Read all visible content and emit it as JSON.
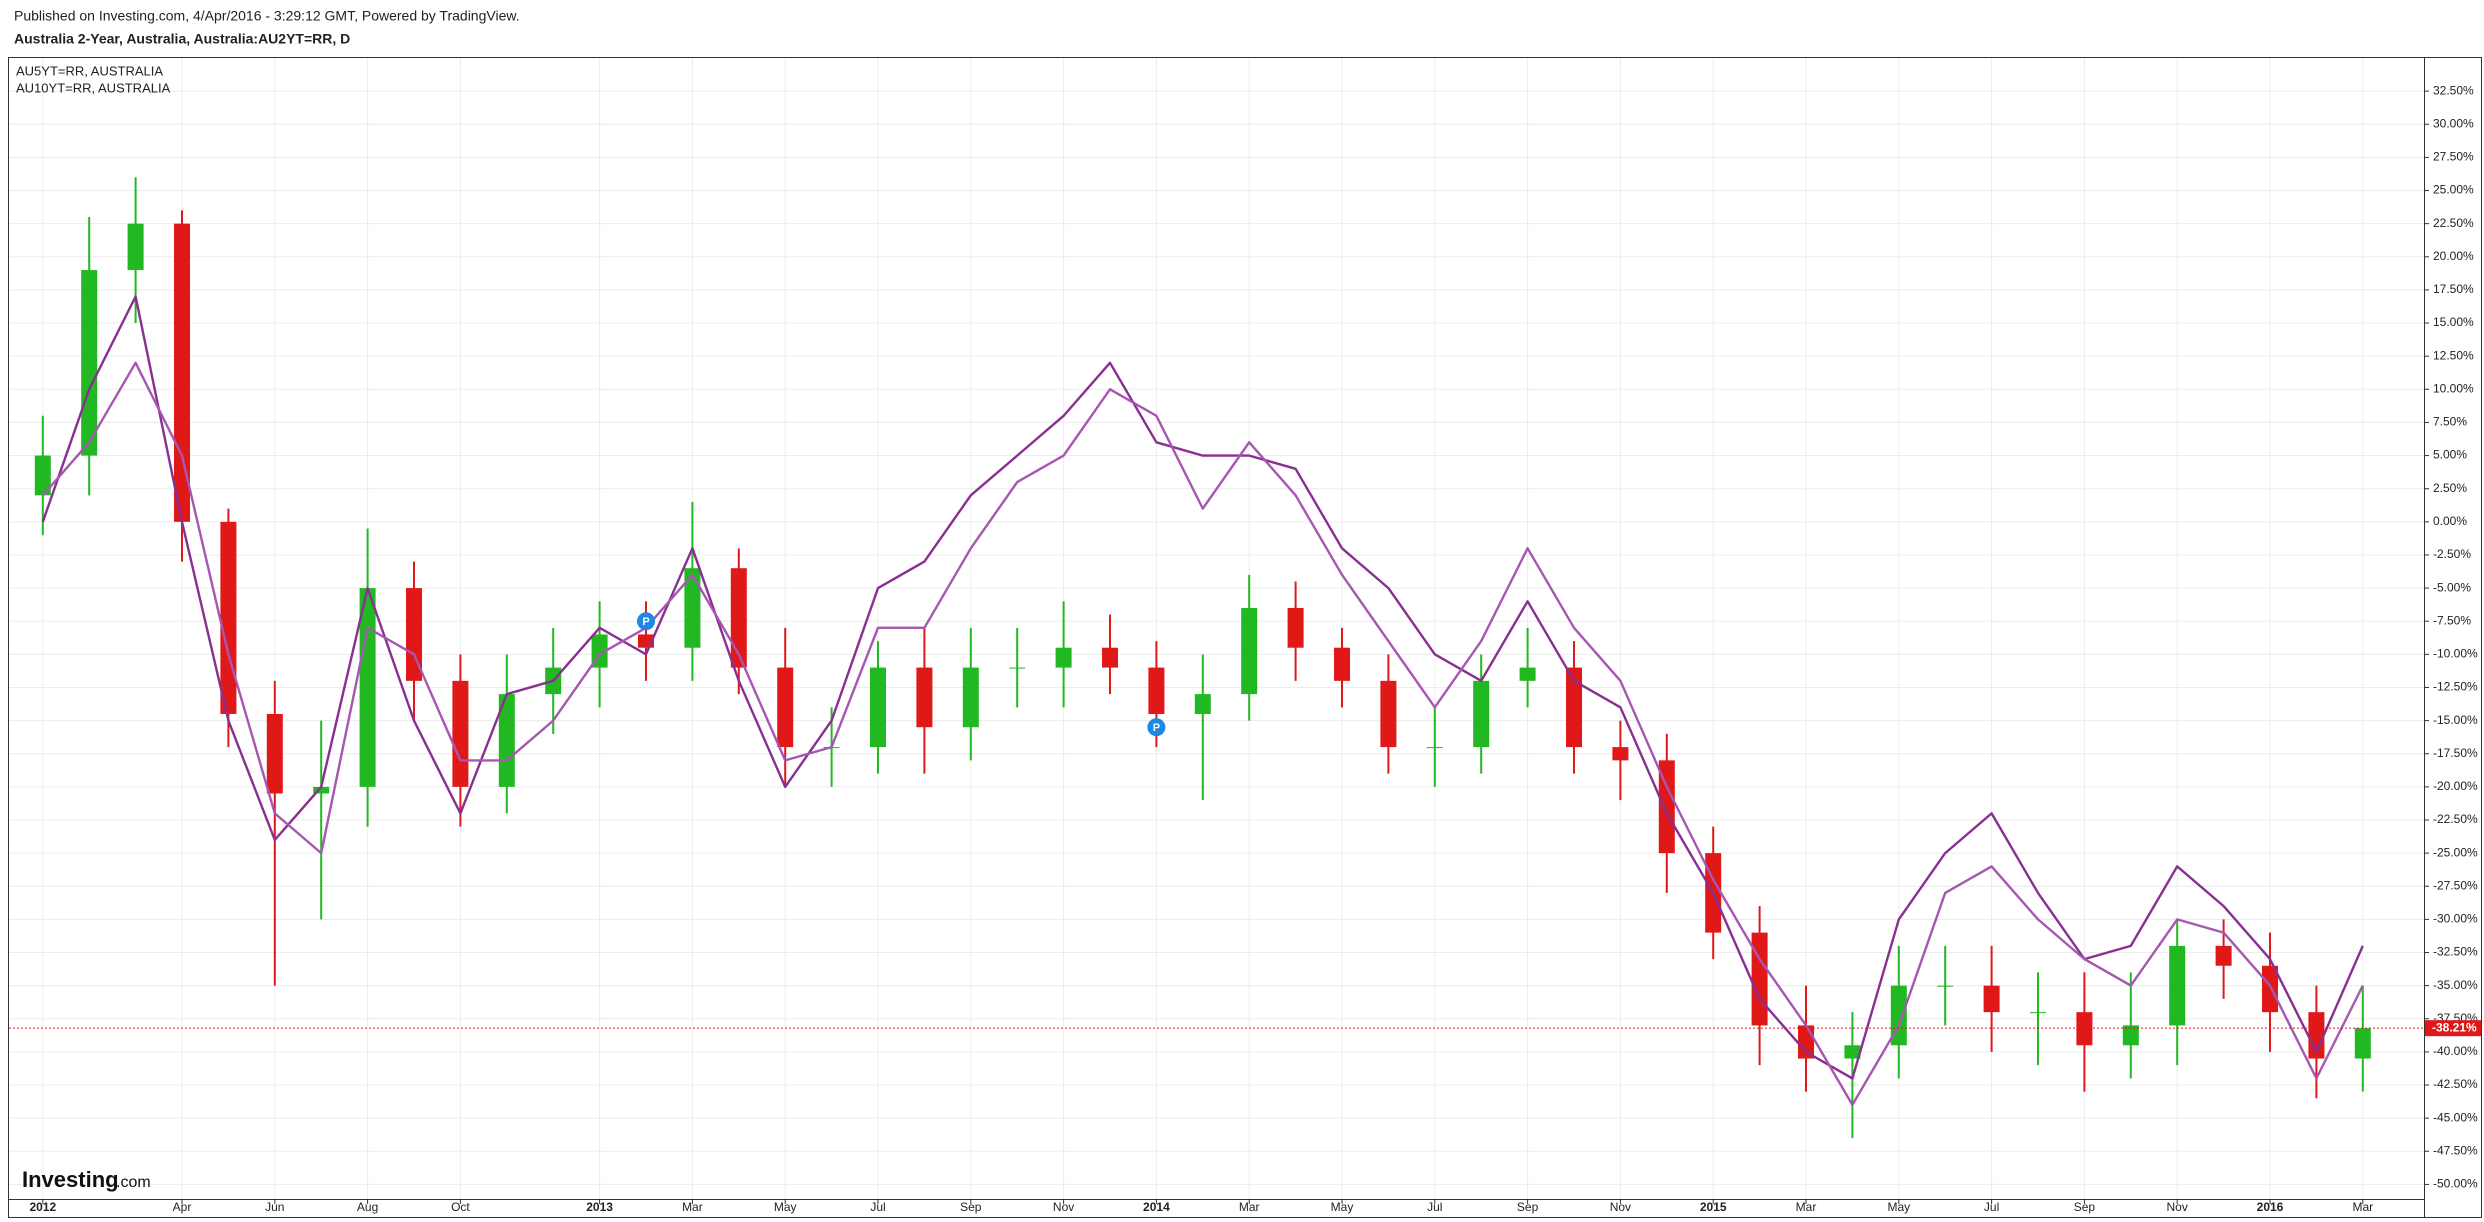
{
  "header": {
    "published": "Published on Investing.com, 4/Apr/2016 - 3:29:12 GMT, Powered by TradingView."
  },
  "watermark": {
    "name": "Investing",
    "suffix": ".com"
  },
  "chart_data": {
    "type": "candlestick",
    "title": "Australia 2-Year, Australia, Australia:AU2YT=RR, D",
    "x": [
      "2012-01",
      "2012-02",
      "2012-03",
      "2012-04",
      "2012-05",
      "2012-06",
      "2012-07",
      "2012-08",
      "2012-09",
      "2012-10",
      "2012-11",
      "2012-12",
      "2013-01",
      "2013-02",
      "2013-03",
      "2013-04",
      "2013-05",
      "2013-06",
      "2013-07",
      "2013-08",
      "2013-09",
      "2013-10",
      "2013-11",
      "2013-12",
      "2014-01",
      "2014-02",
      "2014-03",
      "2014-04",
      "2014-05",
      "2014-06",
      "2014-07",
      "2014-08",
      "2014-09",
      "2014-10",
      "2014-11",
      "2014-12",
      "2015-01",
      "2015-02",
      "2015-03",
      "2015-04",
      "2015-05",
      "2015-06",
      "2015-07",
      "2015-08",
      "2015-09",
      "2015-10",
      "2015-11",
      "2015-12",
      "2016-01",
      "2016-02",
      "2016-03"
    ],
    "candles": {
      "up_color": "#22b822",
      "down_color": "#e01818",
      "open": [
        2,
        5,
        19,
        22.5,
        0,
        -14.5,
        -20.5,
        -20,
        -5,
        -12,
        -20,
        -13,
        -11,
        -8.5,
        -9.5,
        -3.5,
        -11,
        -17,
        -17,
        -11,
        -15.5,
        -11,
        -11,
        -9.5,
        -11,
        -14.5,
        -13,
        -6.5,
        -9.5,
        -12,
        -17,
        -17,
        -12,
        -11,
        -17,
        -18,
        -25,
        -31,
        -38,
        -40.5,
        -39.5,
        -35,
        -35,
        -37,
        -37,
        -39.5,
        -38,
        -32,
        -33.5,
        -37,
        -40.5
      ],
      "high": [
        8,
        23,
        26,
        23.5,
        1,
        -12,
        -15,
        -0.5,
        -3,
        -10,
        -10,
        -8,
        -6,
        -6,
        1.5,
        -2,
        -8,
        -14,
        -9,
        -8,
        -8,
        -8,
        -6,
        -7,
        -9,
        -10,
        -4,
        -4.5,
        -8,
        -10,
        -14,
        -10,
        -8,
        -9,
        -15,
        -16,
        -23,
        -29,
        -35,
        -37,
        -32,
        -32,
        -32,
        -34,
        -34,
        -34,
        -30,
        -30,
        -31,
        -35,
        -35
      ],
      "low": [
        -1,
        2,
        15,
        -3,
        -17,
        -35,
        -30,
        -23,
        -15,
        -23,
        -22,
        -16,
        -14,
        -12,
        -12,
        -13,
        -20,
        -20,
        -19,
        -19,
        -18,
        -14,
        -14,
        -13,
        -17,
        -21,
        -15,
        -12,
        -14,
        -19,
        -20,
        -19,
        -14,
        -19,
        -21,
        -28,
        -33,
        -41,
        -43,
        -46.5,
        -42,
        -38,
        -40,
        -41,
        -43,
        -42,
        -41,
        -36,
        -40,
        -43.5,
        -43
      ],
      "close": [
        5,
        19,
        22.5,
        0,
        -14.5,
        -20.5,
        -20,
        -5,
        -12,
        -20,
        -13,
        -11,
        -8.5,
        -9.5,
        -3.5,
        -11,
        -17,
        -17,
        -11,
        -15.5,
        -11,
        -11,
        -9.5,
        -11,
        -14.5,
        -13,
        -6.5,
        -9.5,
        -12,
        -17,
        -17,
        -12,
        -11,
        -17,
        -18,
        -25,
        -31,
        -38,
        -40.5,
        -39.5,
        -35,
        -35,
        -37,
        -37,
        -39.5,
        -38,
        -32,
        -33.5,
        -37,
        -40.5,
        -38.21
      ]
    },
    "series": [
      {
        "name": "AU5YT=RR, AUSTRALIA",
        "color": "#8a2f92",
        "values": [
          0,
          10,
          17,
          0,
          -15,
          -24,
          -20,
          -5,
          -15,
          -22,
          -13,
          -12,
          -8,
          -10,
          -2,
          -12,
          -20,
          -15,
          -5,
          -3,
          2,
          5,
          8,
          12,
          6,
          5,
          5,
          4,
          -2,
          -5,
          -10,
          -12,
          -6,
          -12,
          -14,
          -22,
          -28,
          -36,
          -40,
          -42,
          -30,
          -25,
          -22,
          -28,
          -33,
          -32,
          -26,
          -29,
          -33,
          -40,
          -32
        ]
      },
      {
        "name": "AU10YT=RR, AUSTRALIA",
        "color": "#a756b2",
        "values": [
          2,
          6,
          12,
          5,
          -10,
          -22,
          -25,
          -8,
          -10,
          -18,
          -18,
          -15,
          -10,
          -8,
          -4,
          -10,
          -18,
          -17,
          -8,
          -8,
          -2,
          3,
          5,
          10,
          8,
          1,
          6,
          2,
          -4,
          -9,
          -14,
          -9,
          -2,
          -8,
          -12,
          -20,
          -27,
          -33,
          -38,
          -44,
          -38,
          -28,
          -26,
          -30,
          -33,
          -35,
          -30,
          -31,
          -35,
          -42,
          -35
        ]
      }
    ],
    "events": [
      {
        "x": "2013-02",
        "value": -7.5,
        "label": "P"
      },
      {
        "x": "2014-01",
        "value": -15.5,
        "label": "P"
      }
    ],
    "last_price": {
      "value": -38.21,
      "label": "-38.21%",
      "color": "#e01818"
    },
    "ylim": [
      -51.1,
      35
    ],
    "yticks": [
      {
        "value": 32.5,
        "label": "32.50%"
      },
      {
        "value": 30,
        "label": "30.00%"
      },
      {
        "value": 27.5,
        "label": "27.50%"
      },
      {
        "value": 25,
        "label": "25.00%"
      },
      {
        "value": 22.5,
        "label": "22.50%"
      },
      {
        "value": 20,
        "label": "20.00%"
      },
      {
        "value": 17.5,
        "label": "17.50%"
      },
      {
        "value": 15,
        "label": "15.00%"
      },
      {
        "value": 12.5,
        "label": "12.50%"
      },
      {
        "value": 10,
        "label": "10.00%"
      },
      {
        "value": 7.5,
        "label": "7.50%"
      },
      {
        "value": 5,
        "label": "5.00%"
      },
      {
        "value": 2.5,
        "label": "2.50%"
      },
      {
        "value": 0,
        "label": "0.00%"
      },
      {
        "value": -2.5,
        "label": "-2.50%"
      },
      {
        "value": -5,
        "label": "-5.00%"
      },
      {
        "value": -7.5,
        "label": "-7.50%"
      },
      {
        "value": -10,
        "label": "-10.00%"
      },
      {
        "value": -12.5,
        "label": "-12.50%"
      },
      {
        "value": -15,
        "label": "-15.00%"
      },
      {
        "value": -17.5,
        "label": "-17.50%"
      },
      {
        "value": -20,
        "label": "-20.00%"
      },
      {
        "value": -22.5,
        "label": "-22.50%"
      },
      {
        "value": -25,
        "label": "-25.00%"
      },
      {
        "value": -27.5,
        "label": "-27.50%"
      },
      {
        "value": -30,
        "label": "-30.00%"
      },
      {
        "value": -32.5,
        "label": "-32.50%"
      },
      {
        "value": -35,
        "label": "-35.00%"
      },
      {
        "value": -37.5,
        "label": "-37.50%"
      },
      {
        "value": -40,
        "label": "-40.00%"
      },
      {
        "value": -42.5,
        "label": "-42.50%"
      },
      {
        "value": -45,
        "label": "-45.00%"
      },
      {
        "value": -47.5,
        "label": "-47.50%"
      },
      {
        "value": -50,
        "label": "-50.00%"
      }
    ],
    "xticks": [
      {
        "value": "2012-01",
        "label": "2012"
      },
      {
        "value": "2012-04",
        "label": "Apr"
      },
      {
        "value": "2012-06",
        "label": "Jun"
      },
      {
        "value": "2012-08",
        "label": "Aug"
      },
      {
        "value": "2012-10",
        "label": "Oct"
      },
      {
        "value": "2013-01",
        "label": "2013"
      },
      {
        "value": "2013-03",
        "label": "Mar"
      },
      {
        "value": "2013-05",
        "label": "May"
      },
      {
        "value": "2013-07",
        "label": "Jul"
      },
      {
        "value": "2013-09",
        "label": "Sep"
      },
      {
        "value": "2013-11",
        "label": "Nov"
      },
      {
        "value": "2014-01",
        "label": "2014"
      },
      {
        "value": "2014-03",
        "label": "Mar"
      },
      {
        "value": "2014-05",
        "label": "May"
      },
      {
        "value": "2014-07",
        "label": "Jul"
      },
      {
        "value": "2014-09",
        "label": "Sep"
      },
      {
        "value": "2014-11",
        "label": "Nov"
      },
      {
        "value": "2015-01",
        "label": "2015"
      },
      {
        "value": "2015-03",
        "label": "Mar"
      },
      {
        "value": "2015-05",
        "label": "May"
      },
      {
        "value": "2015-07",
        "label": "Jul"
      },
      {
        "value": "2015-09",
        "label": "Sep"
      },
      {
        "value": "2015-11",
        "label": "Nov"
      },
      {
        "value": "2016-01",
        "label": "2016"
      },
      {
        "value": "2016-03",
        "label": "Mar"
      }
    ],
    "grid": true
  }
}
